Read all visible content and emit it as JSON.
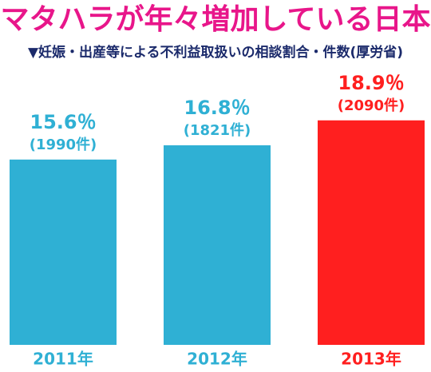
{
  "chart_data": {
    "type": "bar",
    "title": "マタハラが年々増加している日本",
    "subtitle": "▼妊娠・出産等による不利益取扱いの相談割合・件数(厚労省)",
    "categories": [
      "2011年",
      "2012年",
      "2013年"
    ],
    "values": [
      15.6,
      16.8,
      18.9
    ],
    "value_labels": [
      "15.6％",
      "16.8％",
      "18.9％"
    ],
    "counts": [
      1990,
      1821,
      2090
    ],
    "count_labels": [
      "(1990件)",
      "(1821件)",
      "(2090件)"
    ],
    "colors": [
      "#2fb0d4",
      "#2fb0d4",
      "#ff1f1f"
    ],
    "title_color": "#e8168a",
    "subtitle_color": "#1b2a6b",
    "ylim": [
      0,
      25
    ]
  }
}
